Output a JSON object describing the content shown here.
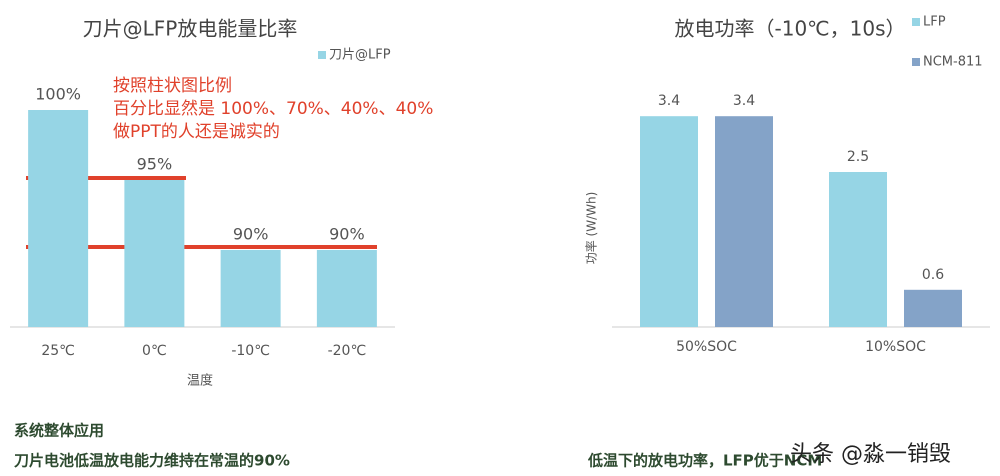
{
  "chart_data": [
    {
      "type": "bar",
      "title": "刀片@LFP放电能量比率",
      "x_label": "温度",
      "categories": [
        "25℃",
        "0℃",
        "-10℃",
        "-20℃"
      ],
      "series": [
        {
          "name": "刀片@LFP",
          "color": "#96d5e5",
          "values": [
            100,
            95,
            90,
            90
          ],
          "value_labels": [
            "100%",
            "95%",
            "90%",
            "90%"
          ]
        }
      ],
      "ylim": [
        84.5,
        100
      ],
      "annotations": [
        "按照柱状图比例",
        "百分比显然是 100%、70%、40%、40%",
        "做PPT的人还是诚实的"
      ]
    },
    {
      "type": "bar",
      "title": "放电功率（-10℃，10s）",
      "y_label": "功率 (W/Wh)",
      "categories": [
        "50%SOC",
        "10%SOC"
      ],
      "series": [
        {
          "name": "LFP",
          "color": "#96d5e5",
          "values": [
            3.4,
            2.5
          ]
        },
        {
          "name": "NCM-811",
          "color": "#84a3c8",
          "values": [
            3.4,
            0.6
          ]
        }
      ],
      "ylim": [
        0,
        3.5
      ]
    }
  ],
  "texts": {
    "section": "系统整体应用",
    "left_caption": "刀片电池低温放电能力维持在常温的90%",
    "right_caption": "低温下的放电功率，LFP优于NCM",
    "watermark": "头条 @淼一销毁"
  }
}
